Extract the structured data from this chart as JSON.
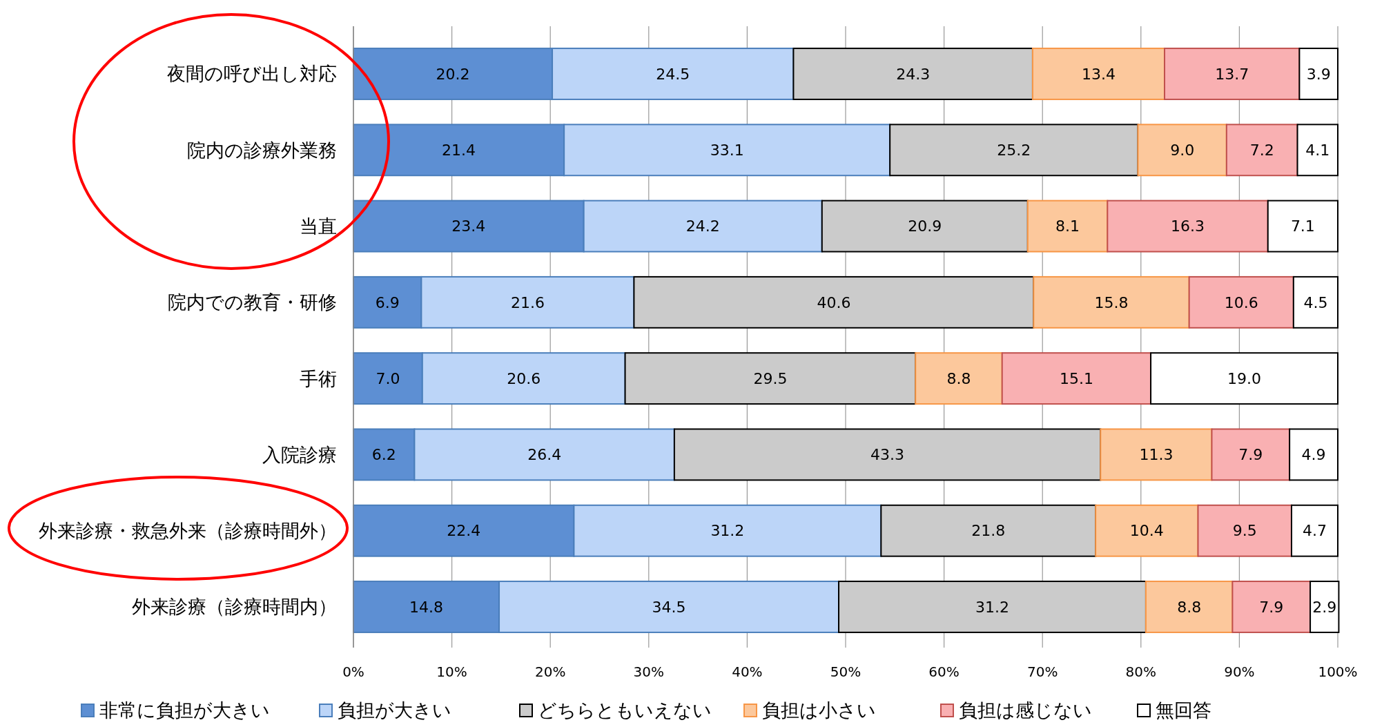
{
  "chart_data": {
    "type": "bar",
    "orientation": "horizontal",
    "stacked": true,
    "grid": "x",
    "legend": "bottom",
    "categories": [
      "夜間の呼び出し対応",
      "院内の診療外業務",
      "当直",
      "院内での教育・研修",
      "手術",
      "入院診療",
      "外来診療・救急外来（診療時間外）",
      "外来診療（診療時間内）"
    ],
    "xlim": [
      0,
      100
    ],
    "xticks": [
      {
        "value": 0,
        "label": "0%"
      },
      {
        "value": 10,
        "label": "10%"
      },
      {
        "value": 20,
        "label": "20%"
      },
      {
        "value": 30,
        "label": "30%"
      },
      {
        "value": 40,
        "label": "40%"
      },
      {
        "value": 50,
        "label": "50%"
      },
      {
        "value": 60,
        "label": "60%"
      },
      {
        "value": 70,
        "label": "70%"
      },
      {
        "value": 80,
        "label": "80%"
      },
      {
        "value": 90,
        "label": "90%"
      },
      {
        "value": 100,
        "label": "100%"
      }
    ],
    "series": [
      {
        "name": "非常に負担が大きい",
        "color": "#5d8fd3",
        "values": [
          20.2,
          21.4,
          23.4,
          6.9,
          7.0,
          6.2,
          22.4,
          14.8
        ],
        "value_labels": [
          "20.2",
          "21.4",
          "23.4",
          "6.9",
          "7.0",
          "6.2",
          "22.4",
          "14.8"
        ]
      },
      {
        "name": "負担が大きい",
        "color": "#bcd5f8",
        "values": [
          24.5,
          33.1,
          24.2,
          21.6,
          20.6,
          26.4,
          31.2,
          34.5
        ],
        "value_labels": [
          "24.5",
          "33.1",
          "24.2",
          "21.6",
          "20.6",
          "26.4",
          "31.2",
          "34.5"
        ]
      },
      {
        "name": "どちらともいえない",
        "color": "#cbcbcb",
        "values": [
          24.3,
          25.2,
          20.9,
          40.6,
          29.5,
          43.3,
          21.8,
          31.2
        ],
        "value_labels": [
          "24.3",
          "25.2",
          "20.9",
          "40.6",
          "29.5",
          "43.3",
          "21.8",
          "31.2"
        ]
      },
      {
        "name": "負担は小さい",
        "color": "#fcc89c",
        "values": [
          13.4,
          9.0,
          8.1,
          15.8,
          8.8,
          11.3,
          10.4,
          8.8
        ],
        "value_labels": [
          "13.4",
          "9.0",
          "8.1",
          "15.8",
          "8.8",
          "11.3",
          "10.4",
          "8.8"
        ]
      },
      {
        "name": "負担は感じない",
        "color": "#f9b0b2",
        "values": [
          13.7,
          7.2,
          16.3,
          10.6,
          15.1,
          7.9,
          9.5,
          7.9
        ],
        "value_labels": [
          "13.7",
          "7.2",
          "16.3",
          "10.6",
          "15.1",
          "7.9",
          "9.5",
          "7.9"
        ]
      },
      {
        "name": "無回答",
        "color": "#ffffff",
        "values": [
          3.9,
          4.1,
          7.1,
          4.5,
          19.0,
          4.9,
          4.7,
          2.9
        ],
        "value_labels": [
          "3.9",
          "4.1",
          "7.1",
          "4.5",
          "19.0",
          "4.9",
          "4.7",
          "2.9"
        ]
      }
    ]
  }
}
